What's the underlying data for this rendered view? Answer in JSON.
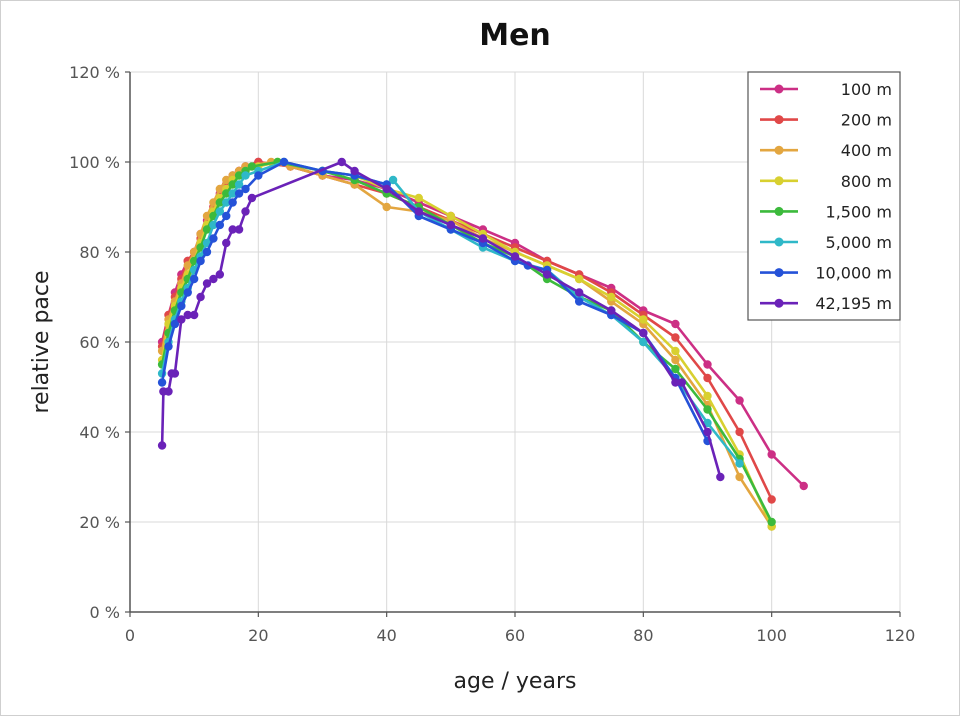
{
  "chart_data": {
    "type": "line",
    "title": "Men",
    "xlabel": "age / years",
    "ylabel": "relative pace",
    "xlim": [
      0,
      120
    ],
    "ylim": [
      0,
      120
    ],
    "x_ticks": [
      0,
      20,
      40,
      60,
      80,
      100,
      120
    ],
    "x_tick_labels": [
      "0",
      "20",
      "40",
      "60",
      "80",
      "100",
      "120"
    ],
    "y_ticks": [
      0,
      20,
      40,
      60,
      80,
      100,
      120
    ],
    "y_tick_labels": [
      "0 %",
      "20 %",
      "40 %",
      "60 %",
      "80 %",
      "100 %",
      "120 %"
    ],
    "grid": true,
    "legend_position": "top-right",
    "series": [
      {
        "name": "100 m",
        "color": "#cc2f85",
        "points": [
          [
            5,
            60
          ],
          [
            6,
            66
          ],
          [
            7,
            71
          ],
          [
            8,
            75
          ],
          [
            9,
            78
          ],
          [
            10,
            80
          ],
          [
            11,
            84
          ],
          [
            12,
            87
          ],
          [
            13,
            90
          ],
          [
            14,
            93
          ],
          [
            15,
            95
          ],
          [
            16,
            97
          ],
          [
            17,
            98
          ],
          [
            18,
            99
          ],
          [
            20,
            100
          ],
          [
            25,
            99
          ],
          [
            30,
            97
          ],
          [
            35,
            96
          ],
          [
            40,
            94
          ],
          [
            45,
            91
          ],
          [
            50,
            88
          ],
          [
            55,
            85
          ],
          [
            60,
            82
          ],
          [
            65,
            78
          ],
          [
            70,
            75
          ],
          [
            75,
            72
          ],
          [
            80,
            67
          ],
          [
            85,
            64
          ],
          [
            90,
            55
          ],
          [
            95,
            47
          ],
          [
            100,
            35
          ],
          [
            105,
            28
          ]
        ]
      },
      {
        "name": "200 m",
        "color": "#e04848",
        "points": [
          [
            5,
            59
          ],
          [
            6,
            66
          ],
          [
            7,
            70
          ],
          [
            8,
            74
          ],
          [
            9,
            78
          ],
          [
            10,
            80
          ],
          [
            11,
            83
          ],
          [
            12,
            86
          ],
          [
            13,
            90
          ],
          [
            14,
            92
          ],
          [
            15,
            95
          ],
          [
            16,
            96
          ],
          [
            17,
            98
          ],
          [
            18,
            99
          ],
          [
            20,
            100
          ],
          [
            25,
            99
          ],
          [
            30,
            97
          ],
          [
            35,
            95
          ],
          [
            40,
            93
          ],
          [
            45,
            90
          ],
          [
            50,
            87
          ],
          [
            55,
            84
          ],
          [
            60,
            81
          ],
          [
            65,
            78
          ],
          [
            70,
            75
          ],
          [
            75,
            71
          ],
          [
            80,
            66
          ],
          [
            85,
            61
          ],
          [
            90,
            52
          ],
          [
            95,
            40
          ],
          [
            100,
            25
          ]
        ]
      },
      {
        "name": "400 m",
        "color": "#e3a640",
        "points": [
          [
            5,
            58
          ],
          [
            6,
            65
          ],
          [
            7,
            69
          ],
          [
            8,
            73
          ],
          [
            9,
            77
          ],
          [
            10,
            80
          ],
          [
            11,
            84
          ],
          [
            12,
            88
          ],
          [
            13,
            91
          ],
          [
            14,
            94
          ],
          [
            15,
            96
          ],
          [
            16,
            97
          ],
          [
            17,
            98
          ],
          [
            18,
            99
          ],
          [
            22,
            100
          ],
          [
            25,
            99
          ],
          [
            30,
            97
          ],
          [
            35,
            95
          ],
          [
            40,
            90
          ],
          [
            45,
            89
          ],
          [
            50,
            87
          ],
          [
            55,
            83
          ],
          [
            60,
            80
          ],
          [
            65,
            77
          ],
          [
            70,
            74
          ],
          [
            75,
            69
          ],
          [
            80,
            64
          ],
          [
            85,
            56
          ],
          [
            90,
            46
          ],
          [
            95,
            30
          ],
          [
            100,
            19
          ]
        ]
      },
      {
        "name": "800 m",
        "color": "#d8d030",
        "points": [
          [
            5,
            56
          ],
          [
            6,
            64
          ],
          [
            7,
            68
          ],
          [
            8,
            72
          ],
          [
            9,
            75
          ],
          [
            10,
            78
          ],
          [
            11,
            82
          ],
          [
            12,
            86
          ],
          [
            13,
            89
          ],
          [
            14,
            92
          ],
          [
            15,
            94
          ],
          [
            16,
            96
          ],
          [
            17,
            97
          ],
          [
            18,
            98
          ],
          [
            20,
            99
          ],
          [
            23,
            100
          ],
          [
            30,
            98
          ],
          [
            35,
            97
          ],
          [
            40,
            94
          ],
          [
            45,
            92
          ],
          [
            50,
            88
          ],
          [
            55,
            84
          ],
          [
            60,
            80
          ],
          [
            65,
            77
          ],
          [
            70,
            74
          ],
          [
            75,
            70
          ],
          [
            80,
            65
          ],
          [
            85,
            58
          ],
          [
            90,
            48
          ],
          [
            95,
            35
          ],
          [
            100,
            19
          ]
        ]
      },
      {
        "name": "1,500 m",
        "color": "#3cba3c",
        "points": [
          [
            5,
            55
          ],
          [
            6,
            62
          ],
          [
            7,
            67
          ],
          [
            8,
            71
          ],
          [
            9,
            74
          ],
          [
            10,
            78
          ],
          [
            11,
            81
          ],
          [
            12,
            85
          ],
          [
            13,
            88
          ],
          [
            14,
            91
          ],
          [
            15,
            93
          ],
          [
            16,
            95
          ],
          [
            17,
            97
          ],
          [
            18,
            98
          ],
          [
            19,
            99
          ],
          [
            23,
            100
          ],
          [
            30,
            98
          ],
          [
            35,
            96
          ],
          [
            40,
            93
          ],
          [
            45,
            90
          ],
          [
            50,
            86
          ],
          [
            55,
            82
          ],
          [
            60,
            79
          ],
          [
            65,
            74
          ],
          [
            70,
            70
          ],
          [
            75,
            67
          ],
          [
            80,
            60
          ],
          [
            85,
            54
          ],
          [
            90,
            45
          ],
          [
            95,
            34
          ],
          [
            100,
            20
          ]
        ]
      },
      {
        "name": "5,000 m",
        "color": "#2fb8c8",
        "points": [
          [
            5,
            53
          ],
          [
            6,
            60
          ],
          [
            7,
            65
          ],
          [
            8,
            69
          ],
          [
            9,
            72
          ],
          [
            10,
            76
          ],
          [
            11,
            79
          ],
          [
            12,
            82
          ],
          [
            13,
            86
          ],
          [
            14,
            89
          ],
          [
            15,
            91
          ],
          [
            16,
            93
          ],
          [
            17,
            95
          ],
          [
            18,
            97
          ],
          [
            20,
            98
          ],
          [
            24,
            100
          ],
          [
            30,
            98
          ],
          [
            35,
            97
          ],
          [
            40,
            95
          ],
          [
            41,
            96
          ],
          [
            45,
            89
          ],
          [
            50,
            85
          ],
          [
            55,
            81
          ],
          [
            60,
            78
          ],
          [
            65,
            76
          ],
          [
            70,
            70
          ],
          [
            75,
            66
          ],
          [
            80,
            60
          ],
          [
            85,
            52
          ],
          [
            90,
            42
          ],
          [
            95,
            33
          ]
        ]
      },
      {
        "name": "10,000 m",
        "color": "#2552d8",
        "points": [
          [
            5,
            51
          ],
          [
            6,
            59
          ],
          [
            7,
            64
          ],
          [
            8,
            68
          ],
          [
            9,
            71
          ],
          [
            10,
            74
          ],
          [
            11,
            78
          ],
          [
            12,
            80
          ],
          [
            13,
            83
          ],
          [
            14,
            86
          ],
          [
            15,
            88
          ],
          [
            16,
            91
          ],
          [
            17,
            93
          ],
          [
            18,
            94
          ],
          [
            20,
            97
          ],
          [
            24,
            100
          ],
          [
            30,
            98
          ],
          [
            35,
            97
          ],
          [
            40,
            95
          ],
          [
            45,
            88
          ],
          [
            50,
            85
          ],
          [
            55,
            82
          ],
          [
            60,
            78
          ],
          [
            62,
            77
          ],
          [
            65,
            76
          ],
          [
            70,
            69
          ],
          [
            75,
            66
          ],
          [
            80,
            62
          ],
          [
            85,
            52
          ],
          [
            90,
            38
          ]
        ]
      },
      {
        "name": "42,195 m",
        "color": "#6a22b8",
        "points": [
          [
            5,
            37
          ],
          [
            5.2,
            49
          ],
          [
            6,
            49
          ],
          [
            6.5,
            53
          ],
          [
            7,
            53
          ],
          [
            8,
            65
          ],
          [
            9,
            66
          ],
          [
            10,
            66
          ],
          [
            11,
            70
          ],
          [
            12,
            73
          ],
          [
            13,
            74
          ],
          [
            14,
            75
          ],
          [
            15,
            82
          ],
          [
            16,
            85
          ],
          [
            17,
            85
          ],
          [
            18,
            89
          ],
          [
            19,
            92
          ],
          [
            33,
            100
          ],
          [
            35,
            98
          ],
          [
            40,
            94
          ],
          [
            45,
            89
          ],
          [
            50,
            86
          ],
          [
            55,
            83
          ],
          [
            60,
            79
          ],
          [
            65,
            75
          ],
          [
            70,
            71
          ],
          [
            75,
            67
          ],
          [
            80,
            62
          ],
          [
            85,
            51
          ],
          [
            86,
            51
          ],
          [
            90,
            40
          ],
          [
            92,
            30
          ]
        ]
      }
    ]
  }
}
